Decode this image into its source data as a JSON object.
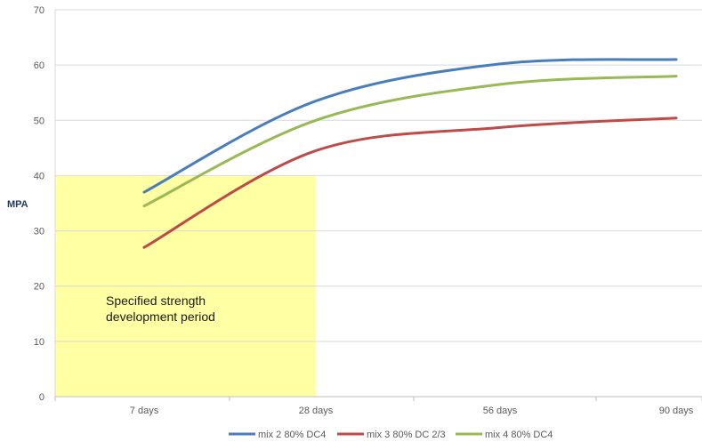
{
  "chart_data": {
    "type": "line",
    "categories": [
      "7 days",
      "28 days",
      "56 days",
      "90 days"
    ],
    "ylabel": "MPA",
    "xlabel": "",
    "ylim": [
      0,
      70
    ],
    "yticks": [
      0,
      10,
      20,
      30,
      40,
      50,
      60,
      70
    ],
    "grid": true,
    "legend_position": "bottom",
    "series": [
      {
        "name": "mix 2 80% DC4",
        "color": "#4a7ebb",
        "values": [
          37,
          53.5,
          60.2,
          61
        ]
      },
      {
        "name": "mix 3 80% DC 2/3",
        "color": "#be4b48",
        "values": [
          27,
          44.5,
          48.7,
          50.4
        ]
      },
      {
        "name": "mix 4 80% DC4",
        "color": "#98b954",
        "values": [
          34.5,
          50,
          56.5,
          58
        ]
      }
    ],
    "highlight": {
      "y_max": 40,
      "from_category": 0,
      "to_category": 1,
      "color": "#ffff99",
      "lines": [
        "Specified strength",
        "development period"
      ]
    }
  }
}
